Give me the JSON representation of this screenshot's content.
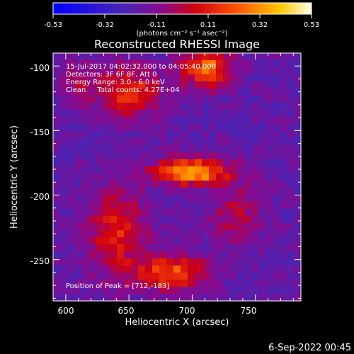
{
  "chart_data": {
    "type": "heatmap",
    "title": "Reconstructed RHESSI Image",
    "xlabel": "Heliocentric X (arcsec)",
    "ylabel": "Heliocentric Y (arcsec)",
    "xlim": [
      590,
      786
    ],
    "ylim": [
      -282,
      -90
    ],
    "x_ticks": [
      "600",
      "650",
      "700",
      "750"
    ],
    "y_ticks": [
      "-100",
      "-150",
      "-200",
      "-250"
    ],
    "colorbar": {
      "ticks": [
        "-0.53",
        "-0.32",
        "-0.11",
        "0.11",
        "0.32",
        "0.53"
      ],
      "range": [
        -0.53,
        0.53
      ],
      "units_label": "(photons cm⁻² s⁻¹ asec⁻²)",
      "orientation": "horizontal",
      "position": "top"
    },
    "colormap": "blue-purple-red-yellow-white (IDL color table 3 variant)",
    "annotations": {
      "time": "15-Jul-2017 04:02:32.000 to 04:05:40.000",
      "detectors": "Detectors: 3F 6F 8F, Att 0",
      "energy": "Energy Range: 3.0 - 6.0 keV",
      "method": "Clean     Total counts: 4.27E+04",
      "peak": "Position of Peak = [712,-183]"
    },
    "peak_position": [
      712,
      -183
    ],
    "sources": [
      {
        "x": 700,
        "y": -182,
        "sx": 20,
        "sy": 7,
        "amp": 0.55
      },
      {
        "x": 683,
        "y": -260,
        "sx": 20,
        "sy": 9,
        "amp": 0.4
      },
      {
        "x": 712,
        "y": -102,
        "sx": 14,
        "sy": 10,
        "amp": 0.42
      },
      {
        "x": 650,
        "y": -120,
        "sx": 18,
        "sy": 14,
        "amp": 0.3
      },
      {
        "x": 640,
        "y": -228,
        "sx": 16,
        "sy": 24,
        "amp": 0.28
      },
      {
        "x": 735,
        "y": -215,
        "sx": 14,
        "sy": 16,
        "amp": 0.18
      },
      {
        "x": 610,
        "y": -110,
        "sx": 10,
        "sy": 12,
        "amp": 0.12
      }
    ],
    "background_level": -0.18
  },
  "footer": {
    "date": "6-Sep-2022 00:45"
  }
}
